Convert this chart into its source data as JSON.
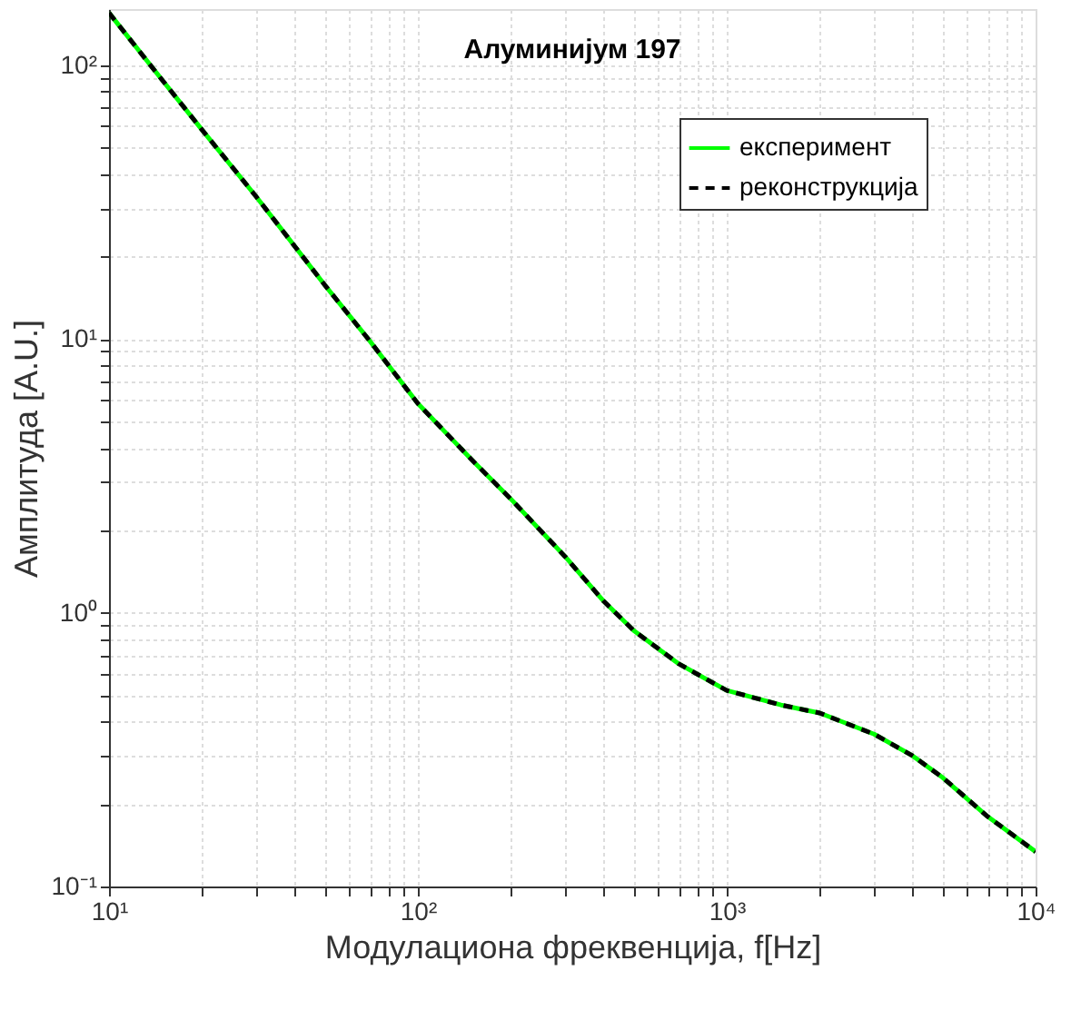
{
  "chart_data": {
    "type": "line",
    "title": "Алуминијум 197",
    "xlabel": "Модулациона фреквенција, f[Hz]",
    "ylabel": "Амплитуда [A.U.]",
    "x": [
      10,
      15,
      20,
      30,
      50,
      70,
      100,
      150,
      200,
      300,
      400,
      500,
      700,
      1000,
      1500,
      2000,
      3000,
      4000,
      5000,
      7000,
      10000
    ],
    "series": [
      {
        "name": "експеримент",
        "color": "#00ff00",
        "line_style": "solid",
        "values": [
          155,
          87,
          58,
          33,
          15.7,
          9.8,
          5.8,
          3.6,
          2.6,
          1.6,
          1.1,
          0.86,
          0.65,
          0.52,
          0.46,
          0.43,
          0.36,
          0.3,
          0.25,
          0.18,
          0.134
        ]
      },
      {
        "name": "реконструкција",
        "color": "#000000",
        "line_style": "dashed",
        "values": [
          155,
          87,
          58,
          33,
          15.7,
          9.8,
          5.8,
          3.6,
          2.6,
          1.6,
          1.1,
          0.86,
          0.65,
          0.52,
          0.46,
          0.43,
          0.36,
          0.3,
          0.25,
          0.18,
          0.134
        ]
      }
    ],
    "log": "xy",
    "grid": true,
    "legend": "top right",
    "xlim": [
      10,
      10000
    ],
    "ylim": [
      0.1,
      160
    ],
    "xticks": [
      {
        "value": 10,
        "label": "10¹"
      },
      {
        "value": 20,
        "label": null
      },
      {
        "value": 30,
        "label": null
      },
      {
        "value": 40,
        "label": null
      },
      {
        "value": 50,
        "label": null
      },
      {
        "value": 60,
        "label": null
      },
      {
        "value": 70,
        "label": null
      },
      {
        "value": 80,
        "label": null
      },
      {
        "value": 90,
        "label": null
      },
      {
        "value": 100,
        "label": "10²"
      },
      {
        "value": 200,
        "label": null
      },
      {
        "value": 300,
        "label": null
      },
      {
        "value": 400,
        "label": null
      },
      {
        "value": 500,
        "label": null
      },
      {
        "value": 600,
        "label": null
      },
      {
        "value": 700,
        "label": null
      },
      {
        "value": 800,
        "label": null
      },
      {
        "value": 900,
        "label": null
      },
      {
        "value": 1000,
        "label": "10³"
      },
      {
        "value": 2000,
        "label": null
      },
      {
        "value": 3000,
        "label": null
      },
      {
        "value": 4000,
        "label": null
      },
      {
        "value": 5000,
        "label": null
      },
      {
        "value": 6000,
        "label": null
      },
      {
        "value": 7000,
        "label": null
      },
      {
        "value": 8000,
        "label": null
      },
      {
        "value": 9000,
        "label": null
      },
      {
        "value": 10000,
        "label": "10⁴"
      }
    ],
    "yticks": [
      {
        "value": 0.1,
        "label": "10⁻¹"
      },
      {
        "value": 0.2,
        "label": null
      },
      {
        "value": 0.3,
        "label": null
      },
      {
        "value": 0.4,
        "label": null
      },
      {
        "value": 0.5,
        "label": null
      },
      {
        "value": 0.6,
        "label": null
      },
      {
        "value": 0.7,
        "label": null
      },
      {
        "value": 0.8,
        "label": null
      },
      {
        "value": 0.9,
        "label": null
      },
      {
        "value": 1,
        "label": "10⁰"
      },
      {
        "value": 2,
        "label": null
      },
      {
        "value": 3,
        "label": null
      },
      {
        "value": 4,
        "label": null
      },
      {
        "value": 5,
        "label": null
      },
      {
        "value": 6,
        "label": null
      },
      {
        "value": 7,
        "label": null
      },
      {
        "value": 8,
        "label": null
      },
      {
        "value": 9,
        "label": null
      },
      {
        "value": 10,
        "label": "10¹"
      },
      {
        "value": 20,
        "label": null
      },
      {
        "value": 30,
        "label": null
      },
      {
        "value": 40,
        "label": null
      },
      {
        "value": 50,
        "label": null
      },
      {
        "value": 60,
        "label": null
      },
      {
        "value": 70,
        "label": null
      },
      {
        "value": 80,
        "label": null
      },
      {
        "value": 90,
        "label": null
      },
      {
        "value": 100,
        "label": "10²"
      }
    ]
  }
}
